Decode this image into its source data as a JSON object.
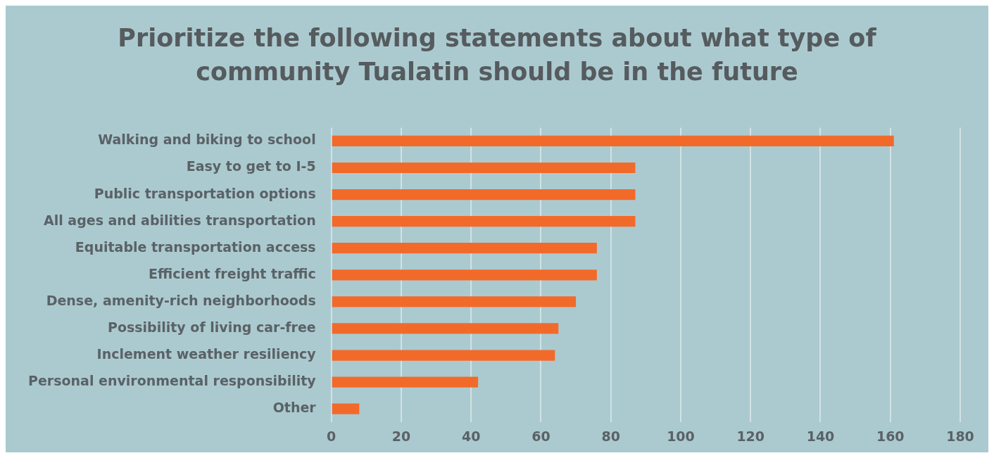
{
  "chart_data": {
    "type": "bar",
    "orientation": "horizontal",
    "title": "Prioritize the following statements about what type of community Tualatin should be in the future",
    "categories": [
      "Walking and biking to school",
      "Easy to get to I-5",
      "Public transportation options",
      "All ages and abilities transportation",
      "Equitable transportation access",
      "Efficient freight traffic",
      "Dense, amenity-rich neighborhoods",
      "Possibility of living car-free",
      "Inclement weather resiliency",
      "Personal environmental responsibility",
      "Other"
    ],
    "values": [
      161,
      87,
      87,
      87,
      76,
      76,
      70,
      65,
      64,
      42,
      8
    ],
    "color": "#f26a2a",
    "xlim": [
      0,
      180
    ],
    "xticks": [
      0,
      20,
      40,
      60,
      80,
      100,
      120,
      140,
      160,
      180
    ],
    "grid": "x",
    "legend": false
  }
}
